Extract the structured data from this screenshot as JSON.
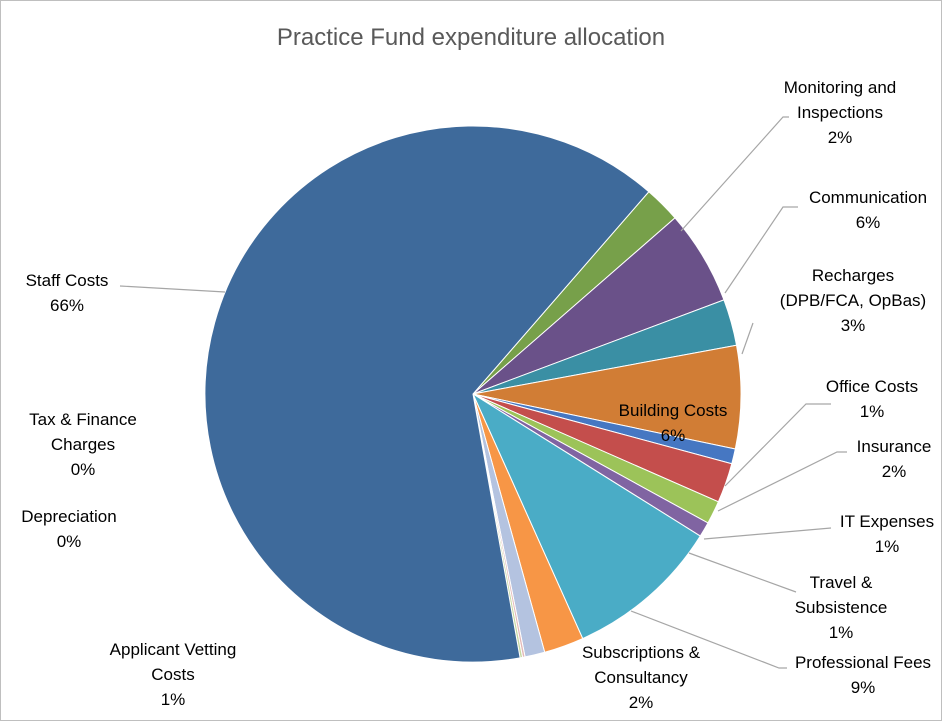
{
  "chart_data": {
    "type": "pie",
    "title": "Practice Fund expenditure allocation",
    "slices": [
      {
        "name": "Monitoring and Inspections",
        "label_lines": [
          "Monitoring and",
          "Inspections"
        ],
        "value": 2,
        "pct_label": "2%",
        "color": "#77a04a"
      },
      {
        "name": "Communication",
        "label_lines": [
          "Communication"
        ],
        "value": 6,
        "pct_label": "6%",
        "color": "#6a5189"
      },
      {
        "name": "Recharges (DPB/FCA, OpBas)",
        "label_lines": [
          "Recharges",
          "(DPB/FCA, OpBas)"
        ],
        "value": 3,
        "pct_label": "3%",
        "color": "#3a8fa4"
      },
      {
        "name": "Building Costs",
        "label_lines": [
          "Building Costs"
        ],
        "value": 6,
        "pct_label": "6%",
        "color": "#d17d35"
      },
      {
        "name": "Office Costs",
        "label_lines": [
          "Office Costs"
        ],
        "value": 1,
        "pct_label": "1%",
        "color": "#4677c2"
      },
      {
        "name": "Insurance",
        "label_lines": [
          "Insurance"
        ],
        "value": 2,
        "pct_label": "2%",
        "color": "#c44e4c"
      },
      {
        "name": "IT Expenses",
        "label_lines": [
          "IT Expenses"
        ],
        "value": 1,
        "pct_label": "1%",
        "color": "#9cc359"
      },
      {
        "name": "Travel & Subsistence",
        "label_lines": [
          "Travel &",
          "Subsistence"
        ],
        "value": 1,
        "pct_label": "1%",
        "color": "#8064a2"
      },
      {
        "name": "Professional Fees",
        "label_lines": [
          "Professional Fees"
        ],
        "value": 9,
        "pct_label": "9%",
        "color": "#4aacc6"
      },
      {
        "name": "Subscriptions & Consultancy",
        "label_lines": [
          "Subscriptions &",
          "Consultancy"
        ],
        "value": 2,
        "pct_label": "2%",
        "color": "#f79646"
      },
      {
        "name": "Applicant Vetting Costs",
        "label_lines": [
          "Applicant Vetting",
          "Costs"
        ],
        "value": 1,
        "pct_label": "1%",
        "color": "#b4c3e0"
      },
      {
        "name": "Depreciation",
        "label_lines": [
          "Depreciation"
        ],
        "value": 0,
        "pct_label": "0%",
        "color": "#e3b9b8"
      },
      {
        "name": "Tax & Finance Charges",
        "label_lines": [
          "Tax & Finance",
          "Charges"
        ],
        "value": 0,
        "pct_label": "0%",
        "color": "#c6d8a0"
      },
      {
        "name": "Staff Costs",
        "label_lines": [
          "Staff Costs"
        ],
        "value": 66,
        "pct_label": "66%",
        "color": "#3e6a9b"
      }
    ]
  }
}
